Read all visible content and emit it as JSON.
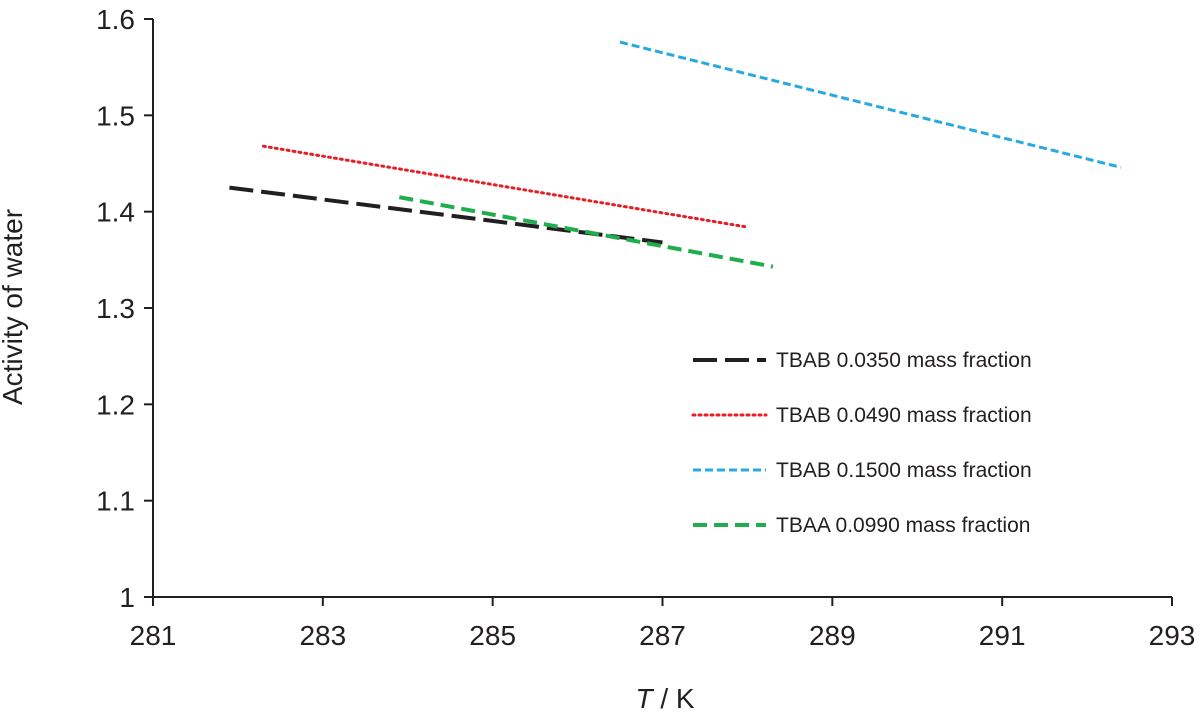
{
  "chart_data": {
    "type": "line",
    "title": "",
    "xlabel": {
      "italic": "T",
      "rest": " / K"
    },
    "ylabel": "Activity of water",
    "xlim": [
      281,
      293
    ],
    "ylim": [
      1,
      1.6
    ],
    "xticks": [
      281,
      283,
      285,
      287,
      289,
      291,
      293
    ],
    "yticks": [
      1,
      1.1,
      1.2,
      1.3,
      1.4,
      1.5,
      1.6
    ],
    "ytick_labels": [
      "1",
      "1.1",
      "1.2",
      "1.3",
      "1.4",
      "1.5",
      "1.6"
    ],
    "grid": false,
    "legend_position": "lower-right",
    "series": [
      {
        "name": "TBAB 0.0350 mass fraction",
        "color": "#231f20",
        "dash": "long-dash",
        "x": [
          281.9,
          287.0
        ],
        "y": [
          1.425,
          1.368
        ]
      },
      {
        "name": "TBAB 0.0490 mass fraction",
        "color": "#e41f26",
        "dash": "dotted",
        "x": [
          282.3,
          288.0
        ],
        "y": [
          1.468,
          1.384
        ]
      },
      {
        "name": "TBAB 0.1500 mass fraction",
        "color": "#27a9e1",
        "dash": "short-dash",
        "x": [
          286.5,
          292.4
        ],
        "y": [
          1.576,
          1.446
        ]
      },
      {
        "name": "TBAA 0.0990 mass fraction",
        "color": "#1fae4b",
        "dash": "dash",
        "x": [
          283.9,
          288.3
        ],
        "y": [
          1.415,
          1.343
        ]
      }
    ]
  }
}
